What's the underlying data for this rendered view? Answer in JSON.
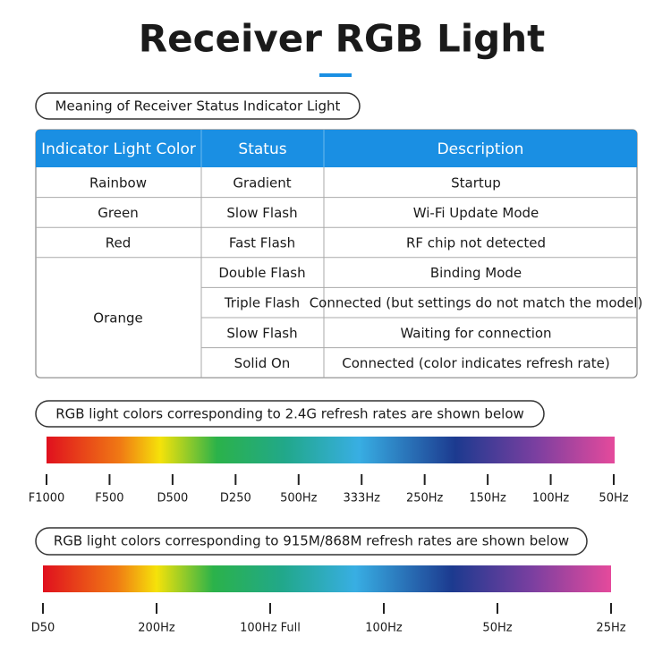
{
  "title": "Receiver RGB Light",
  "section1": {
    "label": "Meaning of Receiver Status Indicator Light"
  },
  "table": {
    "header": [
      "Indicator Light Color",
      "Status",
      "Description"
    ],
    "rows": [
      {
        "color": "Rainbow",
        "entries": [
          [
            "Gradient",
            "Startup"
          ]
        ]
      },
      {
        "color": "Green",
        "entries": [
          [
            "Slow Flash",
            "Wi-Fi Update Mode"
          ]
        ]
      },
      {
        "color": "Red",
        "entries": [
          [
            "Fast Flash",
            "RF chip not detected"
          ]
        ]
      },
      {
        "color": "Orange",
        "entries": [
          [
            "Double Flash",
            "Binding Mode"
          ],
          [
            "Triple Flash",
            "Connected (but settings do not match the model)"
          ],
          [
            "Slow Flash",
            "Waiting for connection"
          ],
          [
            "Solid On",
            "Connected (color indicates refresh rate)"
          ]
        ]
      }
    ]
  },
  "scale1": {
    "label": "RGB light colors corresponding to 2.4G refresh rates are shown below",
    "ticks": [
      "F1000",
      "F500",
      "D500",
      "D250",
      "500Hz",
      "333Hz",
      "250Hz",
      "150Hz",
      "100Hz",
      "50Hz"
    ]
  },
  "scale2": {
    "label": "RGB light colors corresponding to 915M/868M refresh rates are shown below",
    "ticks": [
      "D50",
      "200Hz",
      "100Hz Full",
      "100Hz",
      "50Hz",
      "25Hz"
    ]
  }
}
